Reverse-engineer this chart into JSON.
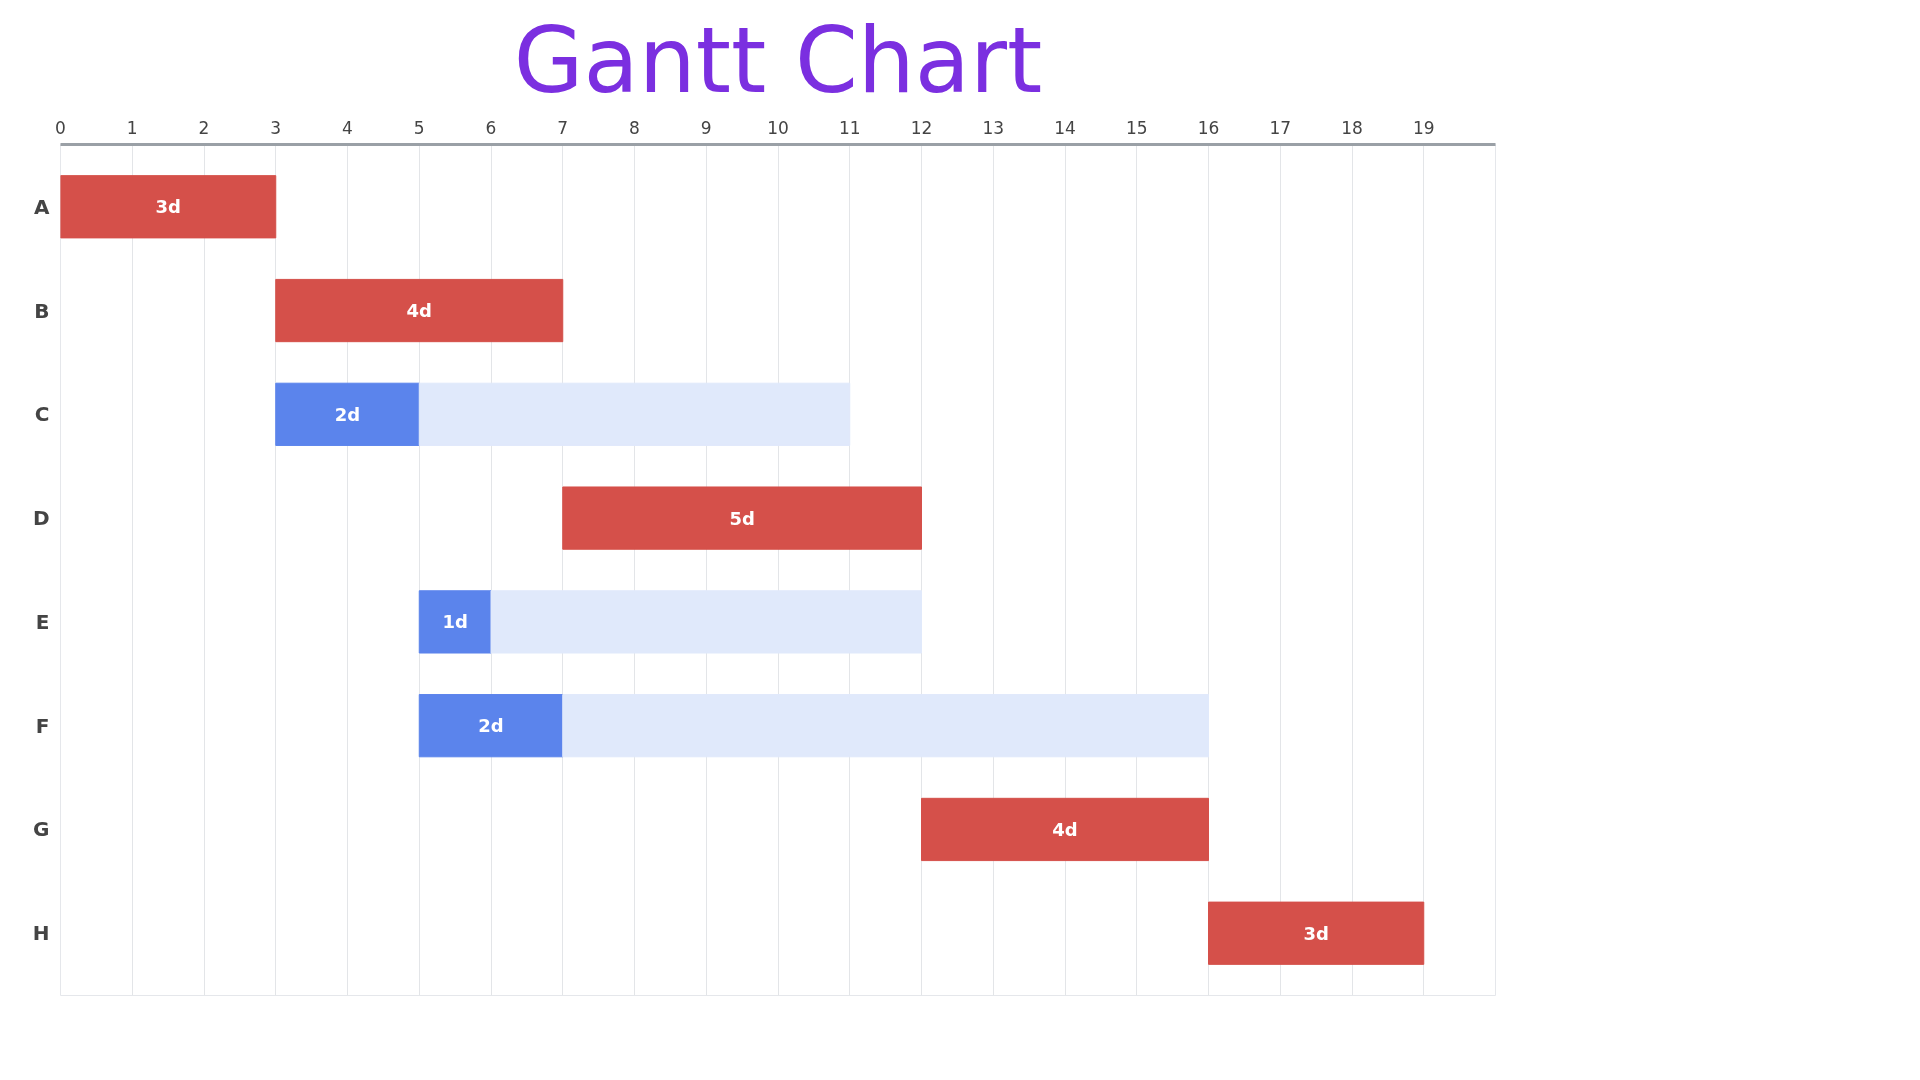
{
  "chart_data": {
    "type": "bar",
    "orientation": "horizontal",
    "title": "Gantt Chart",
    "categories": [
      "A",
      "B",
      "C",
      "D",
      "E",
      "F",
      "G",
      "H"
    ],
    "series": [
      {
        "values": [
          3,
          4,
          2,
          5,
          1,
          2,
          4,
          3
        ],
        "base": [
          0,
          3,
          3,
          7,
          5,
          5,
          12,
          16
        ],
        "colors": [
          "#d5504a",
          "#d5504a",
          "#5b84ec",
          "#d5504a",
          "#5b84ec",
          "#5b84ec",
          "#d5504a",
          "#d5504a"
        ],
        "value_labels": [
          "3d",
          "4d",
          "2d",
          "5d",
          "1d",
          "2d",
          "4d",
          "3d"
        ]
      },
      {
        "values": [
          null,
          null,
          6,
          null,
          6,
          9,
          null,
          null
        ],
        "base": [
          null,
          null,
          5,
          null,
          6,
          7,
          null,
          null
        ],
        "color": "#e0e9fb"
      }
    ],
    "xlim": [
      0,
      20
    ],
    "xticks": [
      0,
      1,
      2,
      3,
      4,
      5,
      6,
      7,
      8,
      9,
      10,
      11,
      12,
      13,
      14,
      15,
      16,
      17,
      18,
      19
    ],
    "grid": "x"
  }
}
